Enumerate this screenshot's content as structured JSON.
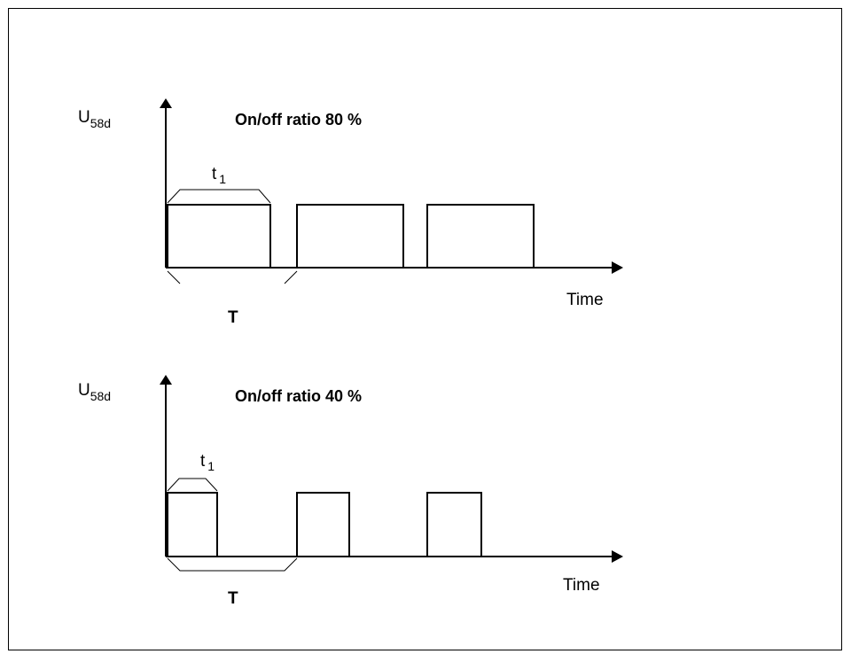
{
  "diagrams": [
    {
      "title": "On/off ratio 80 %",
      "y_axis_label": "U",
      "y_axis_subscript": "58d",
      "x_axis_label": "Time",
      "pulse_width_label": "t",
      "pulse_width_subscript": "1",
      "period_label": "T",
      "on_off_ratio_percent": 80
    },
    {
      "title": "On/off ratio 40 %",
      "y_axis_label": "U",
      "y_axis_subscript": "58d",
      "x_axis_label": "Time",
      "pulse_width_label": "t",
      "pulse_width_subscript": "1",
      "period_label": "T",
      "on_off_ratio_percent": 40
    }
  ]
}
